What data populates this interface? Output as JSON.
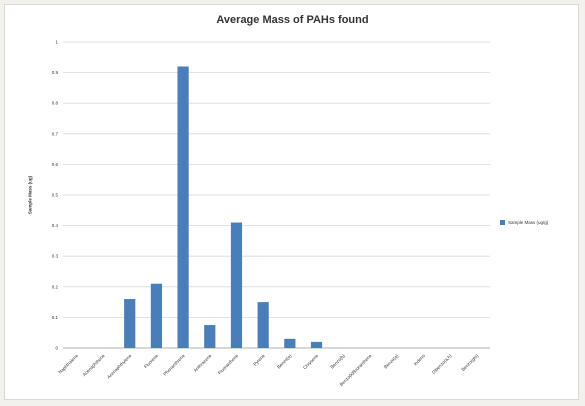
{
  "chart_data": {
    "type": "bar",
    "title": "Average Mass of PAHs found",
    "ylabel": "Sample Mass (ug)",
    "xlabel": "",
    "ylim": [
      0,
      1
    ],
    "yticks": [
      0,
      0.1,
      0.2,
      0.3,
      0.4,
      0.5,
      0.6,
      0.7,
      0.8,
      0.9,
      1
    ],
    "grid": true,
    "legend_position": "right",
    "bar_color": "#4a7ebb",
    "categories": [
      "Naphthalene",
      "Acenaphthene",
      "Acenaphthylene",
      "Fluorene",
      "Phenanthrene",
      "Anthracene",
      "Fluoranthene",
      "Pyrene",
      "Benzo(a)",
      "Chrysene",
      "Benzo(b)",
      "Benzo(k)fluoranthene",
      "Benzo(a)",
      "Indeno",
      "Dibenzo(a,h)",
      "Benzo(ghi)"
    ],
    "series": [
      {
        "name": "Sample Mass (ug/g)",
        "values": [
          0,
          0,
          0.16,
          0.21,
          0.92,
          0.075,
          0.41,
          0.15,
          0.03,
          0.02,
          0,
          0,
          0,
          0,
          0,
          0
        ]
      }
    ]
  }
}
